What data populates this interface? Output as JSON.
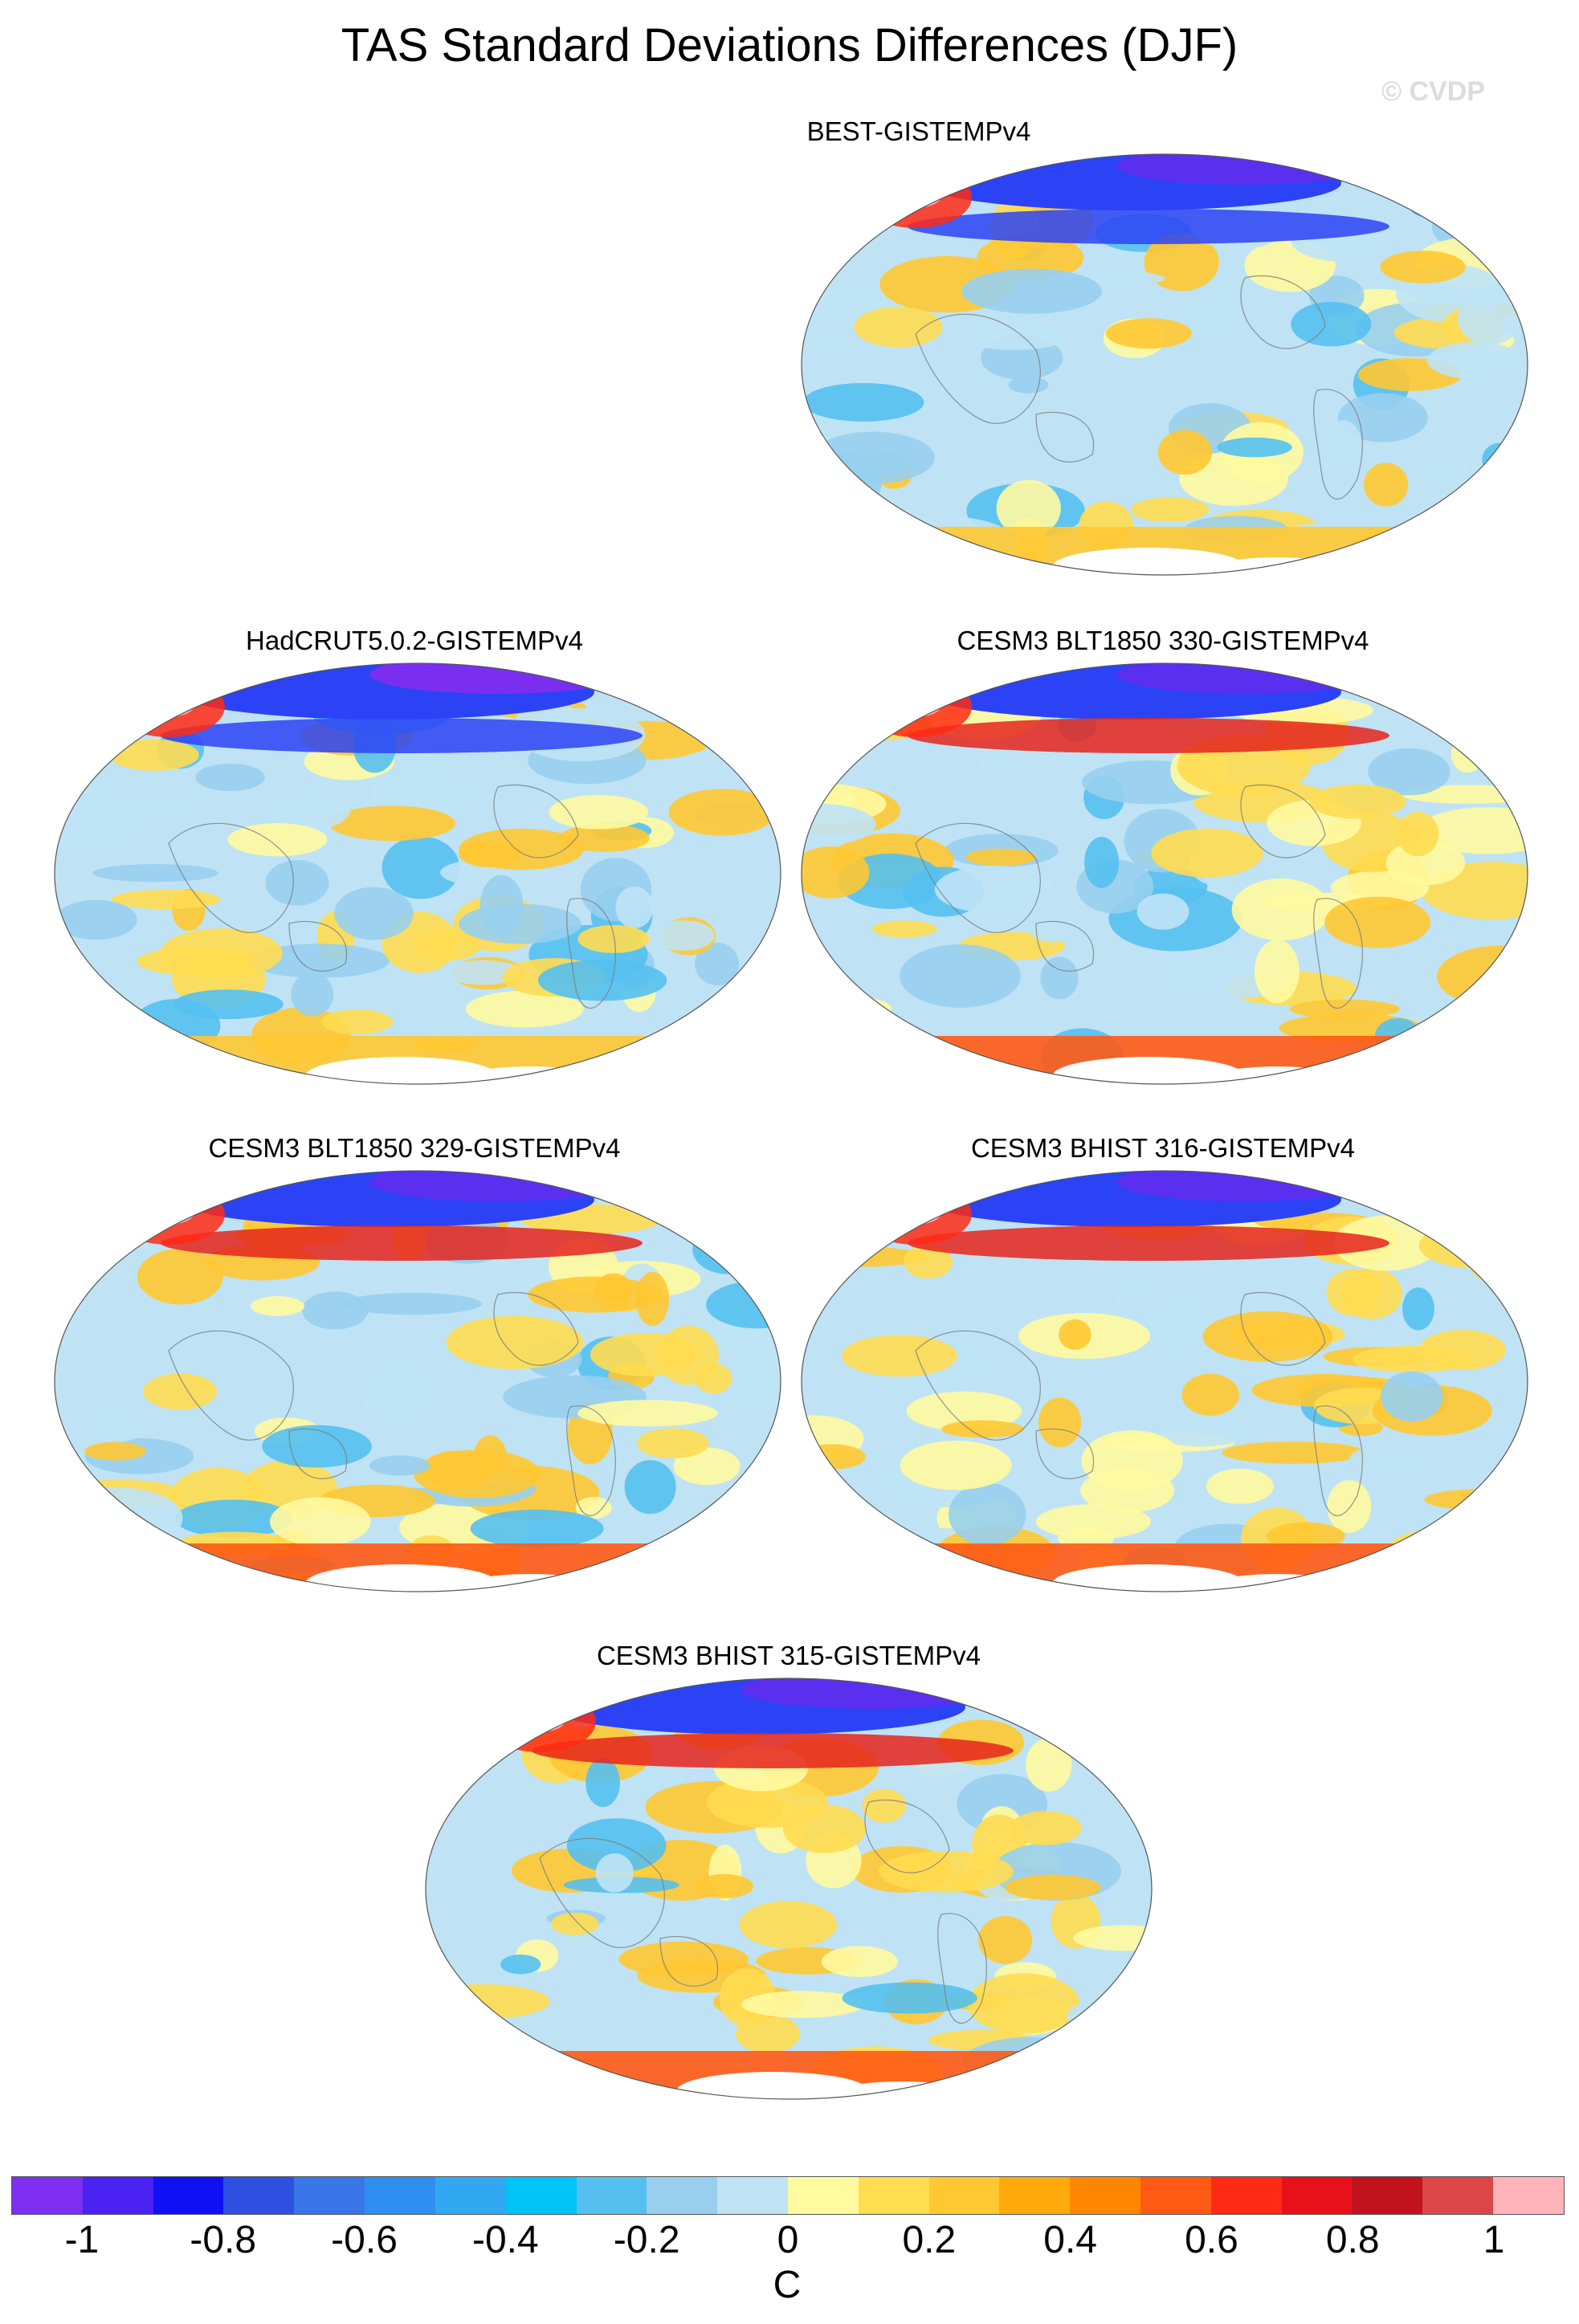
{
  "figure": {
    "title": "TAS Standard Deviations Differences (DJF)",
    "watermark": "© CVDP"
  },
  "panels": [
    {
      "id": "best",
      "title": "BEST-GISTEMPv4",
      "polar_north": "#5a2ff0",
      "polar_band": "#2b43f5"
    },
    {
      "id": "hadcrut",
      "title": "HadCRUT5.0.2-GISTEMPv4",
      "polar_north": "#7a2ff0",
      "polar_band": "#2b43f5"
    },
    {
      "id": "blt330",
      "title": "CESM3 BLT1850 330-GISTEMPv4",
      "polar_north": "#5a2ff0",
      "polar_band": "#e5251c"
    },
    {
      "id": "blt329",
      "title": "CESM3 BLT1850 329-GISTEMPv4",
      "polar_north": "#5a2ff0",
      "polar_band": "#e5251c"
    },
    {
      "id": "bhist316",
      "title": "CESM3 BHIST 316-GISTEMPv4",
      "polar_north": "#5a2ff0",
      "polar_band": "#e5251c"
    },
    {
      "id": "bhist315",
      "title": "CESM3 BHIST 315-GISTEMPv4",
      "polar_north": "#5a2ff0",
      "polar_band": "#e5251c"
    }
  ],
  "colorbar": {
    "unit": "C",
    "ticks": [
      "-1",
      "-0.8",
      "-0.6",
      "-0.4",
      "-0.2",
      "0",
      "0.2",
      "0.4",
      "0.6",
      "0.8",
      "1"
    ],
    "colors": [
      "#7e2ff2",
      "#4a22f2",
      "#1010f5",
      "#2d50e0",
      "#3a76e8",
      "#2f8ff0",
      "#33a8f2",
      "#00c3f7",
      "#55c0f0",
      "#98cfee",
      "#bfe3f5",
      "#fffaa0",
      "#ffdc50",
      "#ffc832",
      "#ffaa0a",
      "#ff8700",
      "#ff5a14",
      "#ff2a14",
      "#e8111a",
      "#c2121e",
      "#dc4648",
      "#ffb4b9"
    ]
  }
}
